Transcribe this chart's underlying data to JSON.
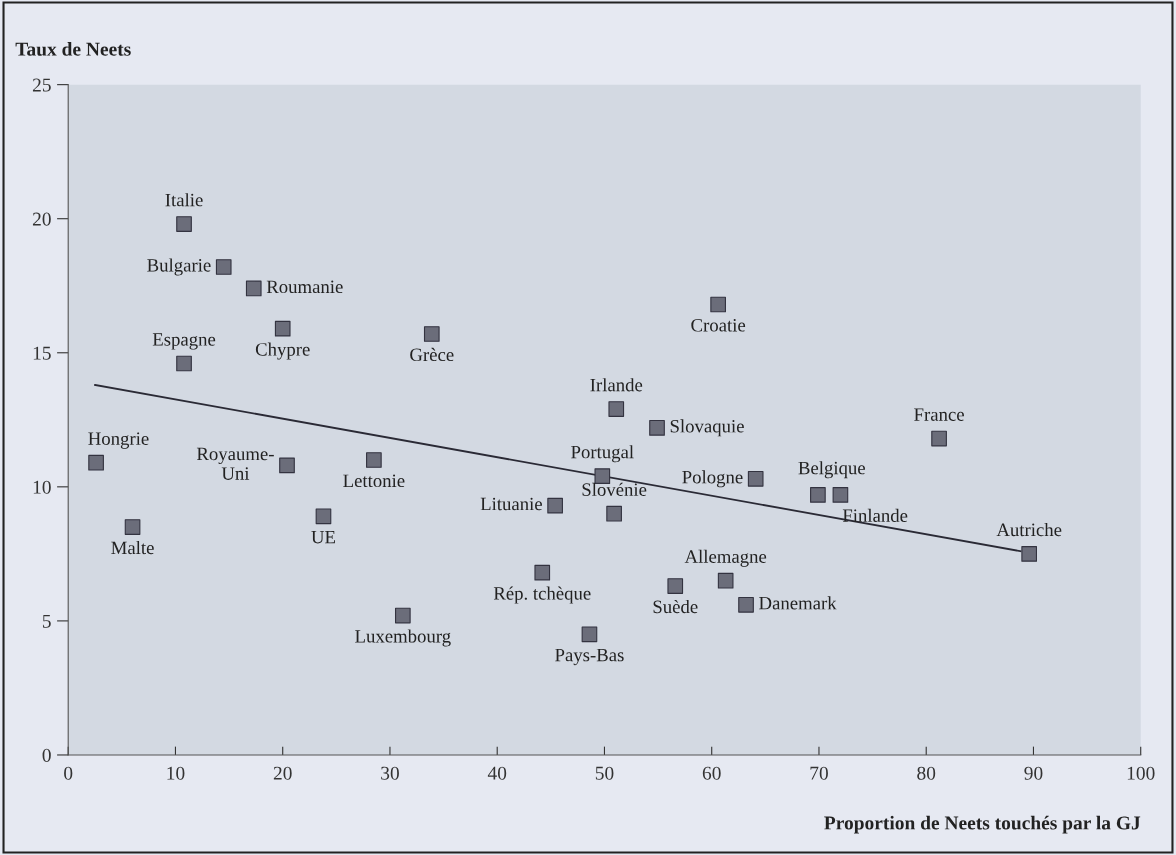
{
  "chart_data": {
    "type": "scatter",
    "ylabel": "Taux de Neets",
    "xlabel": "Proportion de Neets touchés par la GJ",
    "xlim": [
      0,
      100
    ],
    "xticks": [
      0,
      10,
      20,
      30,
      40,
      50,
      60,
      70,
      80,
      90,
      100
    ],
    "ylim": [
      0,
      25
    ],
    "yticks": [
      0,
      5,
      10,
      15,
      20,
      25
    ],
    "grid": false,
    "marker": "square",
    "series": [
      {
        "color": "#6b6d7a",
        "x": [
          10.8,
          14.5,
          17.3,
          20.0,
          10.8,
          33.9,
          60.6,
          51.1,
          54.9,
          81.2,
          2.6,
          20.4,
          28.5,
          49.8,
          64.1,
          69.9,
          72.0,
          45.4,
          6.0,
          23.8,
          50.9,
          89.6,
          44.2,
          56.6,
          61.3,
          63.2,
          31.2,
          48.6
        ],
        "values": [
          19.8,
          18.2,
          17.4,
          15.9,
          14.6,
          15.7,
          16.8,
          12.9,
          12.2,
          11.8,
          10.9,
          10.8,
          11.0,
          10.4,
          10.3,
          9.7,
          9.7,
          9.3,
          8.5,
          8.9,
          9.0,
          7.5,
          6.8,
          6.3,
          6.5,
          5.6,
          5.2,
          4.5
        ]
      },
      {
        "type": "line",
        "color": "#2a2a35",
        "marker": "none",
        "x": [
          2.5,
          88.8
        ],
        "values": [
          13.8,
          7.6
        ]
      }
    ],
    "annotations": [
      {
        "text": "Italie",
        "x": 10.8,
        "y": 19.8
      },
      {
        "text": "Bulgarie",
        "x": 14.5,
        "y": 18.2
      },
      {
        "text": "Roumanie",
        "x": 17.3,
        "y": 17.4
      },
      {
        "text": "Chypre",
        "x": 20.0,
        "y": 15.9
      },
      {
        "text": "Espagne",
        "x": 10.8,
        "y": 14.6
      },
      {
        "text": "Grèce",
        "x": 33.9,
        "y": 15.7
      },
      {
        "text": "Croatie",
        "x": 60.6,
        "y": 16.8
      },
      {
        "text": "Irlande",
        "x": 51.1,
        "y": 12.9
      },
      {
        "text": "Slovaquie",
        "x": 54.9,
        "y": 12.2
      },
      {
        "text": "France",
        "x": 81.2,
        "y": 11.8
      },
      {
        "text": "Hongrie",
        "x": 2.6,
        "y": 10.9
      },
      {
        "text": "Royaume-\nUni",
        "x": 20.4,
        "y": 10.8
      },
      {
        "text": "Lettonie",
        "x": 28.5,
        "y": 11.0
      },
      {
        "text": "Portugal",
        "x": 49.8,
        "y": 10.4
      },
      {
        "text": "Pologne",
        "x": 64.1,
        "y": 10.3
      },
      {
        "text": "Belgique",
        "x": 69.9,
        "y": 9.7
      },
      {
        "text": "Finlande",
        "x": 72.0,
        "y": 9.7
      },
      {
        "text": "Lituanie",
        "x": 45.4,
        "y": 9.3
      },
      {
        "text": "Malte",
        "x": 6.0,
        "y": 8.5
      },
      {
        "text": "UE",
        "x": 23.8,
        "y": 8.9
      },
      {
        "text": "Slovénie",
        "x": 50.9,
        "y": 9.0
      },
      {
        "text": "Autriche",
        "x": 89.6,
        "y": 7.5
      },
      {
        "text": "Rép. tchèque",
        "x": 44.2,
        "y": 6.8
      },
      {
        "text": "Suède",
        "x": 56.6,
        "y": 6.3
      },
      {
        "text": "Allemagne",
        "x": 61.3,
        "y": 6.5
      },
      {
        "text": "Danemark",
        "x": 63.2,
        "y": 5.6
      },
      {
        "text": "Luxembourg",
        "x": 31.2,
        "y": 5.2
      },
      {
        "text": "Pays-Bas",
        "x": 48.6,
        "y": 4.5
      }
    ]
  }
}
